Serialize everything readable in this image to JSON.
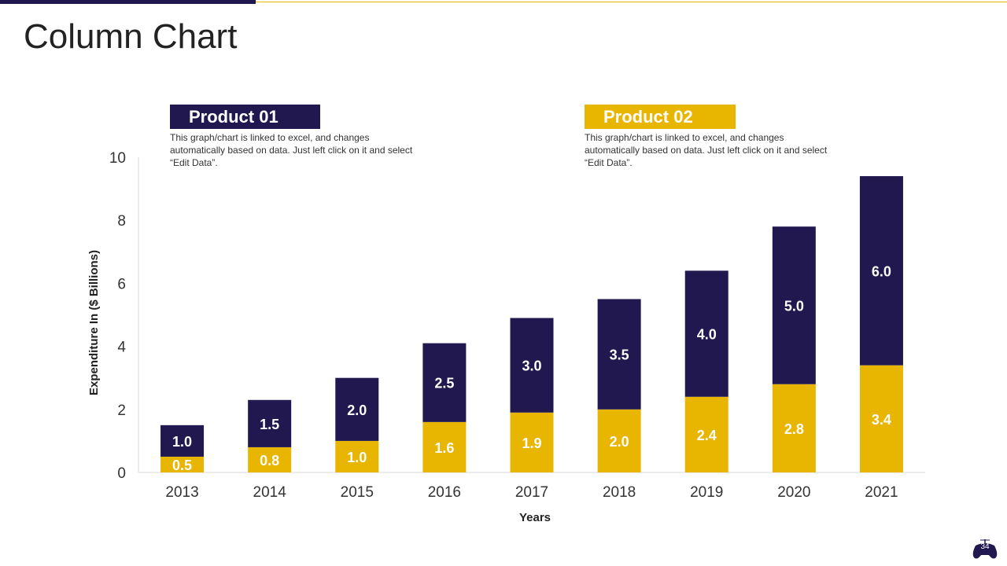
{
  "slide": {
    "title": "Column Chart",
    "page_number": "34"
  },
  "legend": [
    {
      "label": "Product 01",
      "color": "#21184f",
      "description": "This graph/chart is linked to excel, and changes automatically based on data. Just left click on it and select “Edit Data”."
    },
    {
      "label": "Product 02",
      "color": "#e8b500",
      "description": "This graph/chart is linked to excel, and changes automatically based on data. Just left click on it and select “Edit Data”."
    }
  ],
  "chart_data": {
    "type": "bar",
    "stacked": true,
    "categories": [
      "2013",
      "2014",
      "2015",
      "2016",
      "2017",
      "2018",
      "2019",
      "2020",
      "2021"
    ],
    "series": [
      {
        "name": "Product 02",
        "color": "#e8b500",
        "values": [
          0.5,
          0.8,
          1.0,
          1.6,
          1.9,
          2.0,
          2.4,
          2.8,
          3.4
        ]
      },
      {
        "name": "Product 01",
        "color": "#21184f",
        "values": [
          1.0,
          1.5,
          2.0,
          2.5,
          3.0,
          3.5,
          4.0,
          5.0,
          6.0
        ]
      }
    ],
    "xlabel": "Years",
    "ylabel": "Expenditure In ($ Billions)",
    "ylim": [
      0,
      10
    ],
    "yticks": [
      0,
      2,
      4,
      6,
      8,
      10
    ],
    "grid": false
  }
}
